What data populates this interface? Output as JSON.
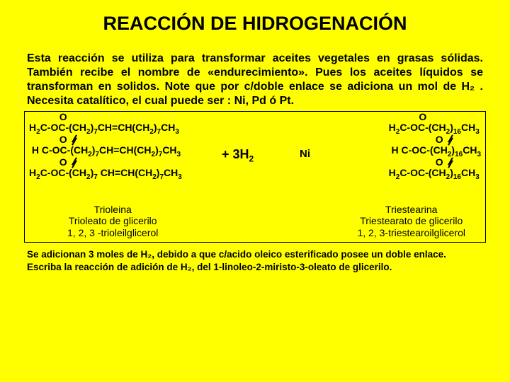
{
  "title": "REACCIÓN DE HIDROGENACIÓN",
  "intro": "Esta reacción se utiliza para transformar aceites vegetales en grasas sólidas. También recibe el nombre de «endurecimiento». Pues los aceites líquidos  se transforman en solidos. Note que por c/doble enlace se adiciona un mol de H₂ . Necesita catalítico, el cual puede ser : Ni, Pd ó Pt.",
  "reactant": {
    "line1": "H₂C-OC-(CH₂)₇CH=CH(CH₂)₇CH₃",
    "line2": "H C-OC-(CH₂)₇CH=CH(CH₂)₇CH₃",
    "line3": "H₂C-OC-(CH₂)₇ CH=CH(CH₂)₇CH₃",
    "name1": "Trioleina",
    "name2": "Trioleato de glicerilo",
    "name3": "1, 2, 3 -trioleilglicerol"
  },
  "center": "+ 3H₂",
  "catalyst": "Ni",
  "product": {
    "line1": "H₂C-OC-(CH₂)₁₆CH₃",
    "line2": "H C-OC-(CH₂)₁₆CH₃",
    "line3": "H₂C-OC-(CH₂)₁₆CH₃",
    "name1": "Triestearina",
    "name2": "Triestearato de glicerilo",
    "name3": "1, 2, 3-triestearoilglicerol"
  },
  "footer1": "Se adicionan 3 moles de H₂, debido a que c/acido oleico esterificado posee un doble enlace.",
  "footer2": "Escriba la reacción de adición de H₂,  del 1-linoleo-2-miristo-3-oleato de glicerilo.",
  "colors": {
    "background": "#ffff00",
    "text": "#000000",
    "border": "#000000"
  }
}
